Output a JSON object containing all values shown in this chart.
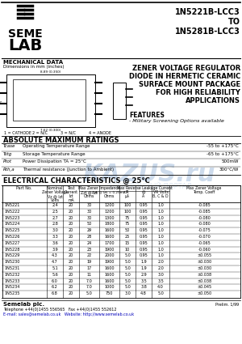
{
  "title_right_line1": "1N5221B-LCC3",
  "title_right_line2": "TO",
  "title_right_line3": "1N5281B-LCC3",
  "product_title_lines": [
    "ZENER VOLTAGE REGULATOR",
    "DIODE IN HERMETIC CERAMIC",
    "SURFACE MOUNT PACKAGE",
    "FOR HIGH RELIABILITY",
    "APPLICATIONS"
  ],
  "features_title": "FEATURES",
  "features_bullet": "- Military Screening Options available",
  "mech_title": "MECHANICAL DATA",
  "mech_sub": "Dimensions in mm (inches)",
  "pin_labels": [
    "1 = CATHODE",
    "2 = N/C",
    "3 = N/C",
    "4 = ANODE"
  ],
  "abs_max_title": "ABSOLUTE MAXIMUM RATINGS",
  "abs_max_rows": [
    [
      "Tcase",
      "Operating Temperature Range",
      "-55 to +175°C"
    ],
    [
      "Tstg",
      "Storage Temperature Range",
      "-65 to +175°C"
    ],
    [
      "Ptot",
      "Power Dissipation TA = 25°C",
      "500mW"
    ],
    [
      "Rth,a",
      "Thermal resistance (Junction to Ambient)",
      "300°C/W"
    ]
  ],
  "elec_title": "ELECTRICAL CHARACTERISTICS @ 25°C",
  "elec_data": [
    [
      "1N5221",
      "2.4",
      "20",
      "30",
      "1200",
      "100",
      "0.95",
      "1.0",
      "-0.085"
    ],
    [
      "1N5222",
      "2.5",
      "20",
      "30",
      "1200",
      "100",
      "0.95",
      "1.0",
      "-0.085"
    ],
    [
      "1N5223",
      "2.7",
      "20",
      "30",
      "1300",
      "75",
      "0.95",
      "1.0",
      "-0.080"
    ],
    [
      "1N5224",
      "2.8",
      "20",
      "50",
      "1800",
      "75",
      "0.95",
      "1.0",
      "-0.080"
    ],
    [
      "1N5225",
      "3.0",
      "20",
      "29",
      "1600",
      "50",
      "0.95",
      "1.0",
      "-0.075"
    ],
    [
      "1N5226",
      "3.3",
      "20",
      "28",
      "1600",
      "25",
      "0.95",
      "1.0",
      "-0.070"
    ],
    [
      "1N5227",
      "3.6",
      "20",
      "24",
      "1700",
      "15",
      "0.95",
      "1.0",
      "-0.065"
    ],
    [
      "1N5228",
      "3.9",
      "20",
      "23",
      "1900",
      "10",
      "0.95",
      "1.0",
      "-0.060"
    ],
    [
      "1N5229",
      "4.3",
      "20",
      "22",
      "2000",
      "5.0",
      "0.95",
      "1.0",
      "±0.055"
    ],
    [
      "1N5230",
      "4.7",
      "20",
      "19",
      "1900",
      "5.0",
      "1.9",
      "2.0",
      "±0.030"
    ],
    [
      "1N5231",
      "5.1",
      "20",
      "17",
      "1600",
      "5.0",
      "1.9",
      "2.0",
      "±0.030"
    ],
    [
      "1N5232",
      "5.6",
      "20",
      "11",
      "1600",
      "5.0",
      "2.9",
      "3.0",
      "±0.038"
    ],
    [
      "1N5233",
      "6.0",
      "20",
      "7.0",
      "1600",
      "5.0",
      "3.5",
      "3.5",
      "±0.038"
    ],
    [
      "1N5234",
      "6.2",
      "20",
      "7.0",
      "1000",
      "5.0",
      "3.8",
      "4.0",
      "±0.045"
    ],
    [
      "1N5235",
      "6.8",
      "20",
      "5.0",
      "750",
      "3.0",
      "4.8",
      "5.0",
      "±0.050"
    ]
  ],
  "footer_company": "Semelab plc.",
  "footer_phone": "Telephone +44(0)1455 556565",
  "footer_fax": "Fax +44(0)1455 552612",
  "footer_email": "E-mail: sales@semelab.co.uk",
  "footer_web": "Website: http://www.semelab.co.uk",
  "footer_page": "Prelim. 1/99",
  "bg_color": "#ffffff",
  "watermark_text": "KAZUS.ru",
  "watermark_sub": "ЭЛЕКТРОННЫЙ ПОРТАЛ",
  "watermark_color": "#b8cce4"
}
